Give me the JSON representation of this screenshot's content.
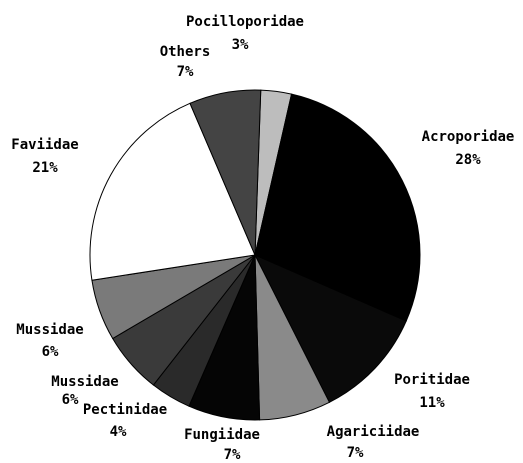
{
  "chart_data": {
    "type": "pie",
    "categories": [
      "Pocilloporidae",
      "Acroporidae",
      "Poritidae",
      "Agariciidae",
      "Fungiidae",
      "Pectinidae",
      "Mussidae",
      "Mussidae",
      "Faviidae",
      "Others"
    ],
    "values": [
      3,
      28,
      11,
      7,
      7,
      4,
      6,
      6,
      21,
      7
    ],
    "value_labels": [
      "3%",
      "28%",
      "11%",
      "7%",
      "7%",
      "4%",
      "6%",
      "6%",
      "21%",
      "7%"
    ],
    "colors": [
      "#bdbdbd",
      "#000000",
      "#0a0a0a",
      "#8a8a8a",
      "#050505",
      "#2a2a2a",
      "#3a3a3a",
      "#7a7a7a",
      "#ffffff",
      "#444444"
    ]
  }
}
